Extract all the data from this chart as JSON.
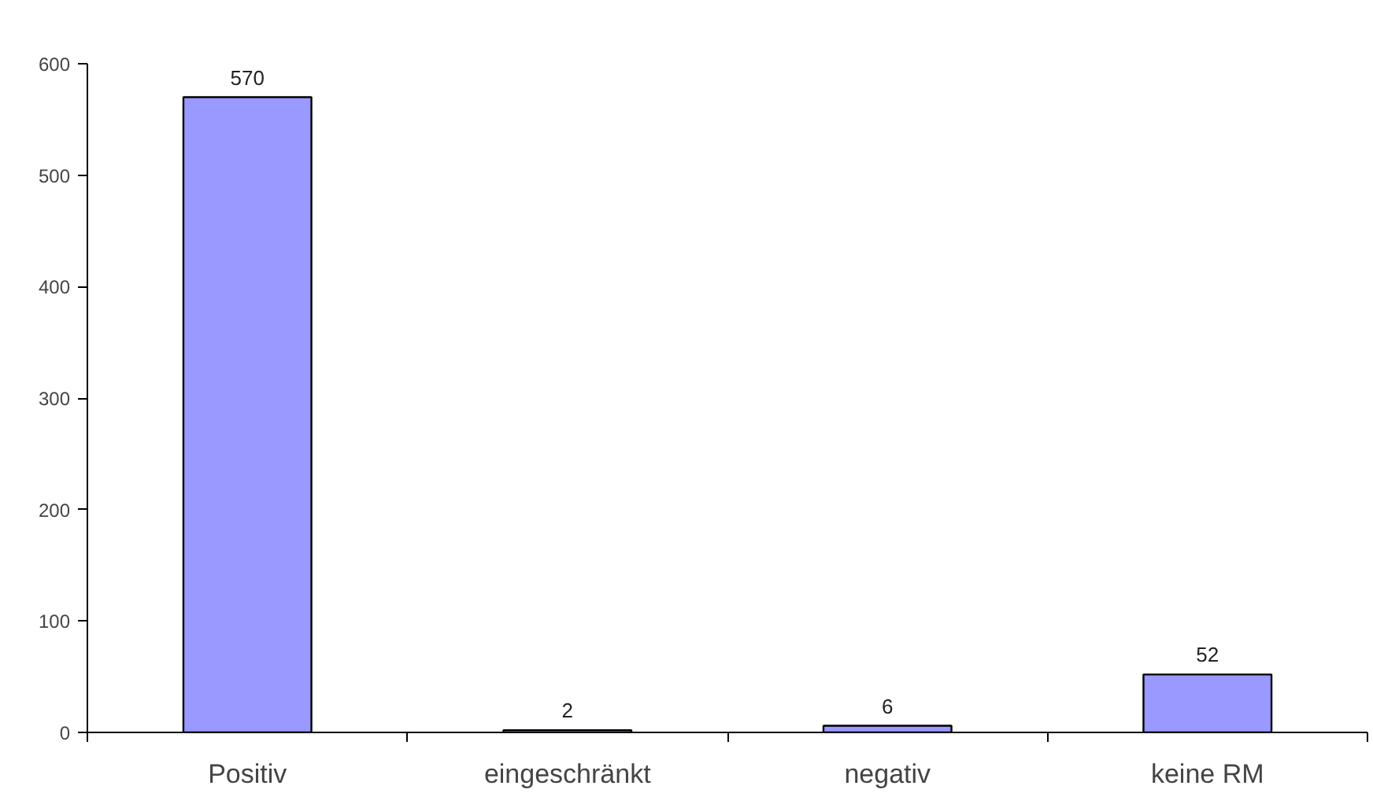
{
  "chart_data": {
    "type": "bar",
    "categories": [
      "Positiv",
      "eingeschränkt",
      "negativ",
      "keine RM"
    ],
    "values": [
      570,
      2,
      6,
      52
    ],
    "color": "#9999ff",
    "ylim": [
      0,
      600
    ],
    "yticks": [
      0,
      100,
      200,
      300,
      400,
      500,
      600
    ],
    "data_labels": true
  }
}
